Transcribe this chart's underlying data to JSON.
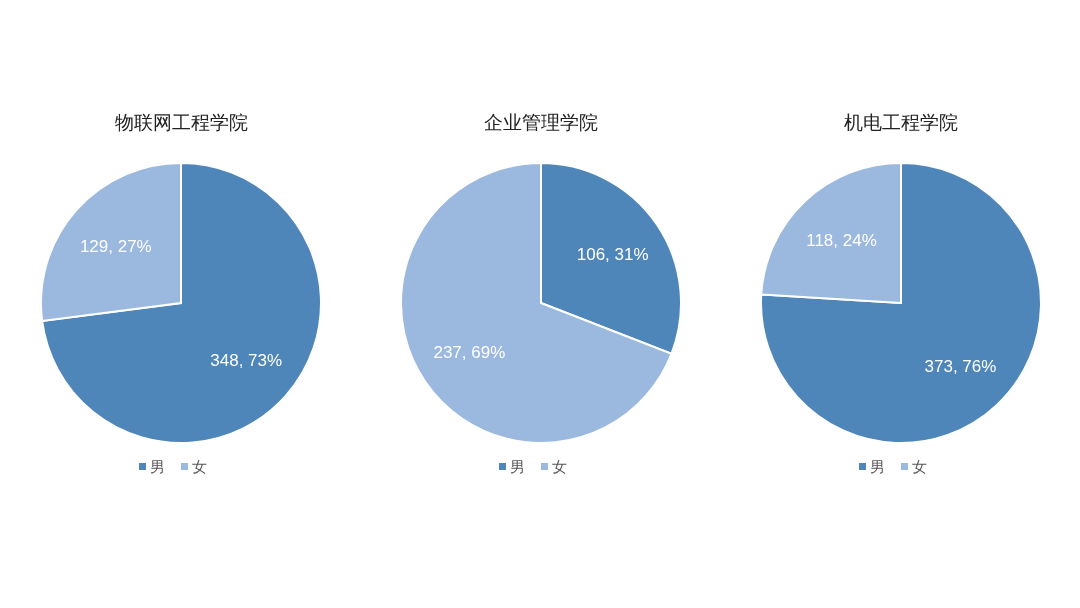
{
  "chart_data": [
    {
      "type": "pie",
      "title": "物联网工程学院",
      "categories": [
        "男",
        "女"
      ],
      "values": [
        348,
        129
      ],
      "colors": [
        "#4f86b9",
        "#9bb8df"
      ],
      "value_labels": [
        "348, 73%",
        "129, 27%"
      ],
      "legend": "bottom"
    },
    {
      "type": "pie",
      "title": "企业管理学院",
      "categories": [
        "男",
        "女"
      ],
      "values": [
        106,
        237
      ],
      "colors": [
        "#4f86b9",
        "#9bb8df"
      ],
      "value_labels": [
        "106, 31%",
        "237, 69%"
      ],
      "legend": "bottom"
    },
    {
      "type": "pie",
      "title": "机电工程学院",
      "categories": [
        "男",
        "女"
      ],
      "values": [
        373,
        118
      ],
      "colors": [
        "#4f86b9",
        "#9bb8df"
      ],
      "value_labels": [
        "373, 76%",
        "118, 24%"
      ],
      "legend": "bottom"
    }
  ]
}
